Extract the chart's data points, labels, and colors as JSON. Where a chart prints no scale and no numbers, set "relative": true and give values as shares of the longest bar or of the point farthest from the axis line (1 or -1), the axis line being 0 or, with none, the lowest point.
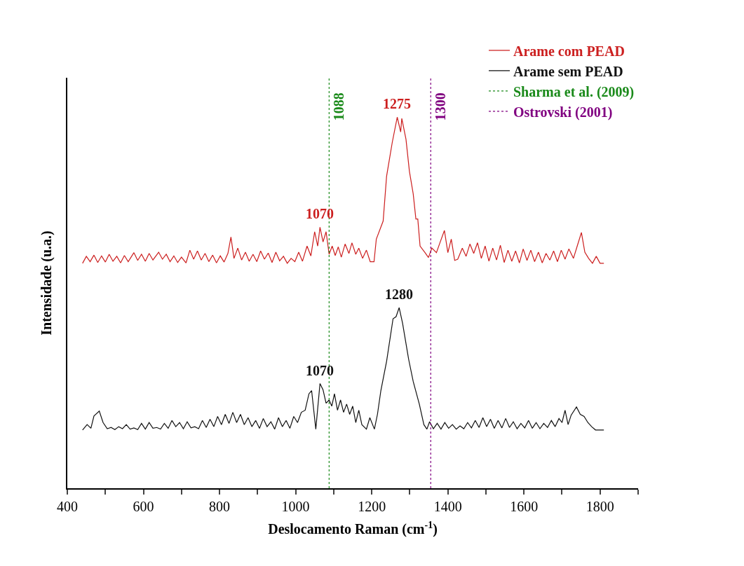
{
  "chart_data": {
    "type": "line",
    "relative": true,
    "xlabel": "Deslocamento Raman (cm$^{-1}$)",
    "ylabel": "Intensidade (u.a.)",
    "xlim": [
      400,
      1900
    ],
    "xticks": [
      400,
      {
        "value": 500,
        "label": null
      },
      600,
      {
        "value": 700,
        "label": null
      },
      800,
      {
        "value": 900,
        "label": null
      },
      1000,
      {
        "value": 1100,
        "label": null
      },
      1200,
      {
        "value": 1300,
        "label": null
      },
      1400,
      {
        "value": 1500,
        "label": null
      },
      1600,
      {
        "value": 1700,
        "label": null
      },
      1800,
      {
        "value": 1900,
        "label": null
      }
    ],
    "legend": "top right",
    "marker": "none",
    "tick_labels": "x",
    "series": [
      {
        "name": "Arame com PEAD",
        "color": "#cc1f1f",
        "line_style": "solid",
        "x": [
          440,
          450,
          460,
          470,
          480,
          490,
          500,
          510,
          520,
          530,
          540,
          550,
          560,
          575,
          585,
          595,
          605,
          615,
          625,
          640,
          650,
          660,
          670,
          680,
          690,
          700,
          712,
          722,
          732,
          742,
          752,
          762,
          772,
          782,
          792,
          802,
          812,
          822,
          830,
          838,
          848,
          858,
          868,
          878,
          888,
          898,
          908,
          918,
          928,
          938,
          948,
          958,
          968,
          978,
          988,
          998,
          1008,
          1018,
          1030,
          1040,
          1050,
          1058,
          1064,
          1072,
          1080,
          1088,
          1096,
          1104,
          1112,
          1120,
          1130,
          1140,
          1148,
          1158,
          1166,
          1176,
          1186,
          1196,
          1206,
          1212,
          1230,
          1239,
          1254,
          1267,
          1276,
          1279,
          1290,
          1299,
          1309,
          1316,
          1321,
          1327,
          1340,
          1349,
          1358,
          1370,
          1380,
          1391,
          1400,
          1409,
          1418,
          1426,
          1438,
          1448,
          1458,
          1468,
          1478,
          1488,
          1498,
          1508,
          1518,
          1528,
          1538,
          1548,
          1558,
          1568,
          1578,
          1588,
          1598,
          1608,
          1618,
          1628,
          1638,
          1648,
          1658,
          1668,
          1678,
          1688,
          1698,
          1708,
          1718,
          1730,
          1740,
          1751,
          1760,
          1770,
          1780,
          1790,
          1800,
          1810
        ],
        "values": [
          0.548,
          0.565,
          0.552,
          0.568,
          0.55,
          0.566,
          0.551,
          0.57,
          0.553,
          0.565,
          0.549,
          0.567,
          0.552,
          0.574,
          0.555,
          0.57,
          0.553,
          0.572,
          0.556,
          0.575,
          0.558,
          0.57,
          0.552,
          0.566,
          0.55,
          0.563,
          0.549,
          0.58,
          0.558,
          0.578,
          0.556,
          0.572,
          0.552,
          0.568,
          0.549,
          0.566,
          0.551,
          0.572,
          0.612,
          0.56,
          0.585,
          0.556,
          0.575,
          0.553,
          0.57,
          0.552,
          0.578,
          0.558,
          0.573,
          0.55,
          0.575,
          0.554,
          0.565,
          0.548,
          0.56,
          0.552,
          0.575,
          0.553,
          0.59,
          0.566,
          0.625,
          0.59,
          0.636,
          0.6,
          0.625,
          0.57,
          0.59,
          0.567,
          0.588,
          0.563,
          0.595,
          0.572,
          0.598,
          0.57,
          0.585,
          0.56,
          0.58,
          0.552,
          0.552,
          0.607,
          0.651,
          0.76,
          0.843,
          0.904,
          0.868,
          0.901,
          0.85,
          0.772,
          0.717,
          0.656,
          0.656,
          0.59,
          0.574,
          0.562,
          0.585,
          0.574,
          0.6,
          0.628,
          0.574,
          0.607,
          0.555,
          0.558,
          0.585,
          0.565,
          0.595,
          0.572,
          0.598,
          0.56,
          0.59,
          0.553,
          0.585,
          0.556,
          0.592,
          0.55,
          0.58,
          0.553,
          0.578,
          0.549,
          0.583,
          0.555,
          0.58,
          0.552,
          0.575,
          0.549,
          0.572,
          0.556,
          0.578,
          0.552,
          0.58,
          0.558,
          0.583,
          0.56,
          0.59,
          0.623,
          0.575,
          0.56,
          0.548,
          0.565,
          0.548,
          0.548
        ]
      },
      {
        "name": "Arame sem PEAD",
        "color": "#111111",
        "line_style": "solid",
        "x": [
          440,
          452,
          462,
          470,
          484,
          494,
          505,
          515,
          525,
          535,
          545,
          555,
          565,
          575,
          585,
          595,
          605,
          615,
          625,
          635,
          645,
          655,
          665,
          675,
          685,
          695,
          705,
          715,
          725,
          735,
          745,
          755,
          765,
          775,
          785,
          795,
          805,
          815,
          825,
          835,
          845,
          855,
          865,
          875,
          885,
          895,
          905,
          915,
          925,
          935,
          945,
          955,
          965,
          975,
          985,
          995,
          1005,
          1015,
          1025,
          1035,
          1042,
          1053,
          1064,
          1072,
          1080,
          1088,
          1095,
          1102,
          1110,
          1118,
          1126,
          1134,
          1142,
          1150,
          1158,
          1166,
          1174,
          1186,
          1195,
          1207,
          1215,
          1224,
          1239,
          1256,
          1264,
          1272,
          1281,
          1297,
          1309,
          1325,
          1337,
          1345,
          1352,
          1362,
          1372,
          1382,
          1392,
          1402,
          1412,
          1422,
          1432,
          1442,
          1452,
          1462,
          1472,
          1482,
          1492,
          1502,
          1512,
          1522,
          1532,
          1542,
          1552,
          1562,
          1572,
          1582,
          1592,
          1602,
          1612,
          1622,
          1632,
          1642,
          1652,
          1662,
          1672,
          1682,
          1692,
          1700,
          1708,
          1716,
          1724,
          1738,
          1748,
          1758,
          1768,
          1778,
          1788,
          1800,
          1810
        ],
        "values": [
          0.142,
          0.155,
          0.146,
          0.176,
          0.188,
          0.16,
          0.145,
          0.148,
          0.143,
          0.15,
          0.145,
          0.155,
          0.144,
          0.147,
          0.143,
          0.158,
          0.144,
          0.16,
          0.146,
          0.148,
          0.144,
          0.158,
          0.146,
          0.165,
          0.15,
          0.16,
          0.145,
          0.162,
          0.147,
          0.15,
          0.145,
          0.165,
          0.148,
          0.168,
          0.15,
          0.175,
          0.155,
          0.18,
          0.158,
          0.185,
          0.16,
          0.18,
          0.155,
          0.172,
          0.15,
          0.165,
          0.146,
          0.17,
          0.15,
          0.162,
          0.144,
          0.172,
          0.15,
          0.165,
          0.146,
          0.175,
          0.16,
          0.185,
          0.19,
          0.23,
          0.238,
          0.144,
          0.255,
          0.24,
          0.207,
          0.215,
          0.2,
          0.23,
          0.19,
          0.215,
          0.185,
          0.205,
          0.18,
          0.2,
          0.16,
          0.19,
          0.155,
          0.144,
          0.172,
          0.144,
          0.18,
          0.238,
          0.309,
          0.413,
          0.418,
          0.44,
          0.402,
          0.314,
          0.26,
          0.205,
          0.155,
          0.144,
          0.162,
          0.145,
          0.158,
          0.144,
          0.16,
          0.146,
          0.155,
          0.144,
          0.152,
          0.145,
          0.16,
          0.147,
          0.165,
          0.148,
          0.172,
          0.15,
          0.168,
          0.146,
          0.165,
          0.147,
          0.17,
          0.148,
          0.162,
          0.145,
          0.158,
          0.147,
          0.165,
          0.146,
          0.16,
          0.145,
          0.158,
          0.148,
          0.165,
          0.15,
          0.17,
          0.16,
          0.19,
          0.155,
          0.178,
          0.198,
          0.18,
          0.175,
          0.16,
          0.15,
          0.142,
          0.142,
          0.142
        ]
      },
      {
        "name": "Sharma et al. (2009)",
        "color": "#1a8a1a",
        "line_style": "dotted",
        "x": [
          1088,
          1088
        ],
        "values": [
          0,
          1
        ]
      },
      {
        "name": "Ostrovski (2001)",
        "color": "#800080",
        "line_style": "dotted",
        "x": [
          1355,
          1355
        ],
        "values": [
          0,
          1
        ]
      }
    ],
    "annotations": [
      {
        "text": "1070",
        "x": 1064,
        "y": 0.636
      },
      {
        "text": "1275",
        "x": 1267,
        "y": 0.904
      },
      {
        "text": "1070",
        "x": 1064,
        "y": 0.255
      },
      {
        "text": "1280",
        "x": 1272,
        "y": 0.44
      },
      {
        "text": "1088",
        "x": 1088,
        "y": 0.93
      },
      {
        "text": "1300",
        "x": 1355,
        "y": 0.93
      }
    ]
  }
}
